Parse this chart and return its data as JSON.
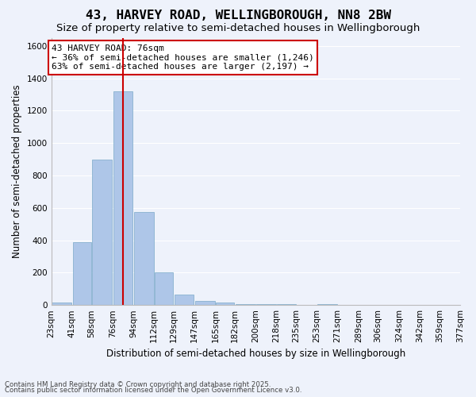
{
  "title": "43, HARVEY ROAD, WELLINGBOROUGH, NN8 2BW",
  "subtitle": "Size of property relative to semi-detached houses in Wellingborough",
  "xlabel": "Distribution of semi-detached houses by size in Wellingborough",
  "ylabel": "Number of semi-detached properties",
  "property_size": 76,
  "annotation_line1": "43 HARVEY ROAD: 76sqm",
  "annotation_line2": "← 36% of semi-detached houses are smaller (1,246)",
  "annotation_line3": "63% of semi-detached houses are larger (2,197) →",
  "bin_edges": [
    23,
    41,
    58,
    76,
    94,
    112,
    129,
    147,
    165,
    182,
    200,
    218,
    235,
    253,
    271,
    289,
    306,
    324,
    342,
    359,
    377
  ],
  "bin_labels": [
    "23sqm",
    "41sqm",
    "58sqm",
    "76sqm",
    "94sqm",
    "112sqm",
    "129sqm",
    "147sqm",
    "165sqm",
    "182sqm",
    "200sqm",
    "218sqm",
    "235sqm",
    "253sqm",
    "271sqm",
    "289sqm",
    "306sqm",
    "324sqm",
    "342sqm",
    "359sqm",
    "377sqm"
  ],
  "bar_heights": [
    15,
    390,
    900,
    1320,
    575,
    200,
    65,
    25,
    15,
    5,
    5,
    5,
    0,
    5,
    0,
    0,
    0,
    0,
    0,
    0
  ],
  "bar_color": "#aec6e8",
  "bar_edge_color": "#7aaac8",
  "line_color": "#cc0000",
  "bg_color": "#eef2fb",
  "grid_color": "#ffffff",
  "ylim": [
    0,
    1650
  ],
  "yticks": [
    0,
    200,
    400,
    600,
    800,
    1000,
    1200,
    1400,
    1600
  ],
  "footer_line1": "Contains HM Land Registry data © Crown copyright and database right 2025.",
  "footer_line2": "Contains public sector information licensed under the Open Government Licence v3.0.",
  "title_fontsize": 11.5,
  "subtitle_fontsize": 9.5,
  "label_fontsize": 8.5,
  "tick_fontsize": 7.5,
  "annotation_fontsize": 8
}
